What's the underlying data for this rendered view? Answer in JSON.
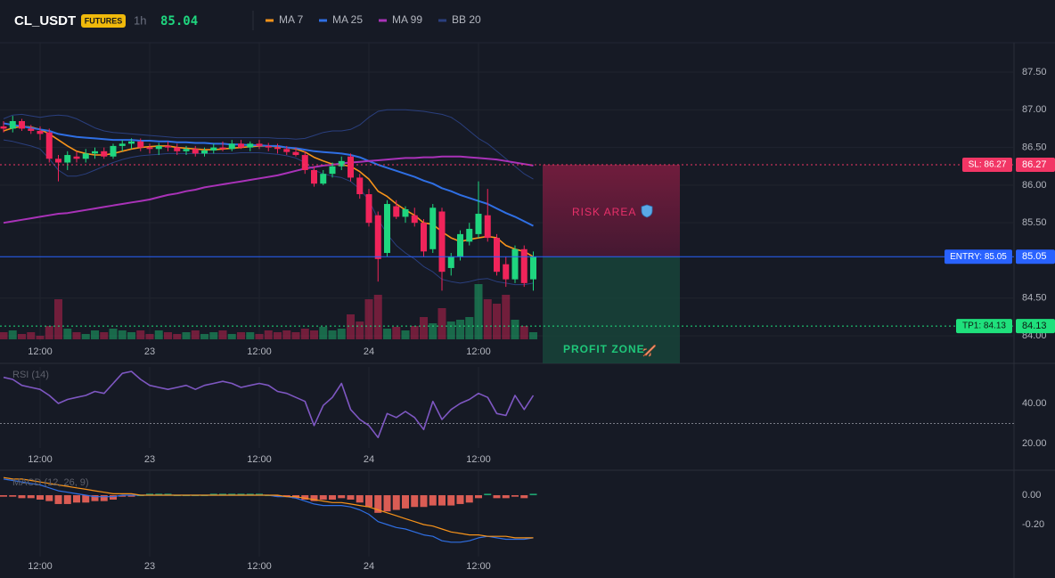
{
  "header": {
    "symbol": "CL_USDT",
    "badge": "FUTURES",
    "interval": "1h",
    "price": "85.04"
  },
  "chart_data": [
    {
      "type": "candlestick",
      "categories": [
        null,
        null,
        null,
        null,
        "12:00",
        null,
        null,
        null,
        null,
        null,
        null,
        null,
        null,
        null,
        null,
        null,
        "23",
        null,
        null,
        null,
        null,
        null,
        null,
        null,
        null,
        null,
        null,
        null,
        "12:00",
        null,
        null,
        null,
        null,
        null,
        null,
        null,
        null,
        null,
        null,
        null,
        "24",
        null,
        null,
        null,
        null,
        null,
        null,
        null,
        null,
        null,
        null,
        null,
        "12:00",
        null,
        null,
        null,
        null,
        null,
        null
      ],
      "open": [
        86.78,
        86.75,
        86.85,
        86.75,
        86.72,
        86.7,
        86.35,
        86.3,
        86.38,
        86.35,
        86.42,
        86.45,
        86.38,
        86.52,
        86.55,
        86.58,
        86.5,
        86.48,
        86.52,
        86.5,
        86.45,
        86.48,
        86.42,
        86.46,
        86.5,
        86.48,
        86.55,
        86.5,
        86.55,
        86.52,
        86.5,
        86.48,
        86.44,
        86.4,
        86.2,
        86.02,
        86.15,
        86.25,
        86.38,
        86.1,
        85.88,
        85.6,
        85.1,
        85.72,
        85.58,
        85.6,
        85.5,
        85.15,
        85.65,
        84.9,
        85.05,
        85.25,
        85.35,
        85.6,
        85.3,
        84.95,
        84.75,
        85.15,
        84.75
      ],
      "high": [
        86.85,
        86.92,
        86.88,
        86.8,
        86.78,
        86.75,
        86.4,
        86.45,
        86.45,
        86.48,
        86.5,
        86.5,
        86.55,
        86.6,
        86.62,
        86.62,
        86.55,
        86.56,
        86.58,
        86.55,
        86.52,
        86.52,
        86.5,
        86.55,
        86.58,
        86.6,
        86.6,
        86.58,
        86.6,
        86.56,
        86.55,
        86.52,
        86.5,
        86.45,
        86.25,
        86.2,
        86.3,
        86.38,
        86.42,
        86.15,
        85.95,
        85.65,
        85.8,
        85.8,
        85.72,
        85.7,
        85.55,
        85.75,
        85.7,
        85.1,
        85.4,
        85.5,
        86.05,
        85.95,
        85.35,
        85.05,
        85.2,
        85.2,
        85.12
      ],
      "low": [
        86.7,
        86.7,
        86.72,
        86.68,
        86.6,
        86.3,
        86.05,
        86.2,
        86.3,
        86.3,
        86.35,
        86.35,
        86.35,
        86.45,
        86.48,
        86.45,
        86.42,
        86.4,
        86.45,
        86.4,
        86.4,
        86.38,
        86.38,
        86.42,
        86.45,
        86.45,
        86.48,
        86.45,
        86.48,
        86.45,
        86.42,
        86.4,
        86.38,
        86.15,
        85.98,
        86.0,
        86.1,
        86.2,
        86.05,
        85.82,
        85.45,
        84.72,
        85.05,
        85.55,
        85.5,
        85.45,
        85.05,
        85.1,
        84.6,
        84.8,
        85.0,
        85.2,
        85.3,
        85.25,
        84.8,
        84.65,
        84.7,
        84.65,
        84.6
      ],
      "close": [
        86.75,
        86.85,
        86.75,
        86.72,
        86.68,
        86.35,
        86.3,
        86.4,
        86.35,
        86.42,
        86.45,
        86.38,
        86.52,
        86.55,
        86.58,
        86.5,
        86.48,
        86.52,
        86.5,
        86.45,
        86.48,
        86.42,
        86.46,
        86.5,
        86.48,
        86.55,
        86.5,
        86.55,
        86.52,
        86.5,
        86.48,
        86.44,
        86.4,
        86.2,
        86.02,
        86.15,
        86.25,
        86.32,
        86.1,
        85.88,
        85.5,
        85.02,
        85.75,
        85.58,
        85.68,
        85.5,
        85.12,
        85.7,
        84.85,
        85.05,
        85.35,
        85.42,
        85.62,
        85.3,
        84.85,
        84.75,
        85.15,
        84.7,
        85.05
      ],
      "volume": [
        8,
        10,
        6,
        8,
        4,
        15,
        45,
        12,
        8,
        6,
        10,
        8,
        12,
        10,
        8,
        10,
        6,
        10,
        8,
        6,
        8,
        10,
        6,
        8,
        10,
        6,
        8,
        8,
        6,
        10,
        8,
        10,
        8,
        12,
        10,
        14,
        10,
        12,
        28,
        20,
        45,
        50,
        12,
        14,
        10,
        15,
        25,
        18,
        35,
        20,
        22,
        25,
        62,
        45,
        40,
        50,
        22,
        15,
        8
      ],
      "up_color": "#1fd67f",
      "down_color": "#f0245a",
      "series": [
        {
          "name": "MA 7",
          "color": "#f7931a",
          "values": [
            86.72,
            86.76,
            86.78,
            86.77,
            86.74,
            86.68,
            86.6,
            86.52,
            86.45,
            86.42,
            86.4,
            86.4,
            86.42,
            86.45,
            86.48,
            86.5,
            86.51,
            86.52,
            86.52,
            86.5,
            86.49,
            86.48,
            86.47,
            86.47,
            86.48,
            86.49,
            86.5,
            86.51,
            86.52,
            86.52,
            86.51,
            86.5,
            86.48,
            86.44,
            86.37,
            86.32,
            86.28,
            86.27,
            86.25,
            86.18,
            86.08,
            85.92,
            85.85,
            85.75,
            85.67,
            85.6,
            85.5,
            85.48,
            85.38,
            85.3,
            85.25,
            85.28,
            85.3,
            85.32,
            85.3,
            85.2,
            85.15,
            85.12,
            85.05
          ]
        },
        {
          "name": "MA 25",
          "color": "#2f6fe4",
          "values": [
            86.82,
            86.8,
            86.78,
            86.76,
            86.74,
            86.72,
            86.68,
            86.66,
            86.64,
            86.63,
            86.62,
            86.61,
            86.6,
            86.6,
            86.6,
            86.59,
            86.59,
            86.58,
            86.58,
            86.57,
            86.57,
            86.56,
            86.56,
            86.55,
            86.55,
            86.54,
            86.54,
            86.53,
            86.53,
            86.52,
            86.52,
            86.5,
            86.49,
            86.47,
            86.45,
            86.44,
            86.43,
            86.42,
            86.4,
            86.37,
            86.32,
            86.27,
            86.23,
            86.19,
            86.15,
            86.11,
            86.06,
            86.02,
            85.96,
            85.92,
            85.87,
            85.83,
            85.79,
            85.75,
            85.69,
            85.63,
            85.58,
            85.52,
            85.46
          ]
        },
        {
          "name": "MA 99",
          "color": "#a932b8",
          "values": [
            85.5,
            85.52,
            85.54,
            85.56,
            85.58,
            85.6,
            85.62,
            85.63,
            85.65,
            85.67,
            85.69,
            85.71,
            85.73,
            85.75,
            85.77,
            85.79,
            85.81,
            85.84,
            85.87,
            85.89,
            85.92,
            85.94,
            85.97,
            85.99,
            86.01,
            86.03,
            86.05,
            86.07,
            86.09,
            86.11,
            86.13,
            86.16,
            86.19,
            86.22,
            86.24,
            86.26,
            86.27,
            86.29,
            86.3,
            86.31,
            86.32,
            86.33,
            86.34,
            86.35,
            86.36,
            86.36,
            86.37,
            86.37,
            86.38,
            86.38,
            86.38,
            86.37,
            86.36,
            86.35,
            86.34,
            86.32,
            86.3,
            86.28,
            86.26
          ]
        },
        {
          "name": "BB 20",
          "color": "#2a3f7e",
          "upper": [
            86.88,
            86.93,
            86.94,
            86.92,
            86.9,
            86.92,
            86.93,
            86.92,
            86.88,
            86.82,
            86.76,
            86.72,
            86.7,
            86.69,
            86.68,
            86.67,
            86.66,
            86.65,
            86.64,
            86.63,
            86.63,
            86.63,
            86.63,
            86.63,
            86.63,
            86.63,
            86.63,
            86.63,
            86.63,
            86.63,
            86.62,
            86.62,
            86.61,
            86.62,
            86.66,
            86.7,
            86.72,
            86.72,
            86.74,
            86.8,
            86.9,
            86.98,
            87.0,
            87.0,
            87.0,
            86.99,
            86.98,
            86.96,
            86.94,
            86.9,
            86.82,
            86.72,
            86.62,
            86.55,
            86.45,
            86.35,
            86.25,
            86.15,
            86.08
          ],
          "lower": [
            86.6,
            86.58,
            86.55,
            86.52,
            86.48,
            86.35,
            86.2,
            86.12,
            86.12,
            86.15,
            86.2,
            86.25,
            86.3,
            86.34,
            86.37,
            86.39,
            86.4,
            86.41,
            86.42,
            86.42,
            86.42,
            86.42,
            86.42,
            86.42,
            86.42,
            86.42,
            86.43,
            86.43,
            86.43,
            86.42,
            86.41,
            86.39,
            86.36,
            86.3,
            86.2,
            86.15,
            86.12,
            86.1,
            86.05,
            85.95,
            85.8,
            85.55,
            85.35,
            85.2,
            85.1,
            85.02,
            84.92,
            84.85,
            84.75,
            84.72,
            84.7,
            84.72,
            84.75,
            84.76,
            84.72,
            84.7,
            84.68,
            84.68,
            84.7
          ]
        }
      ],
      "ylim": [
        83.93,
        87.89
      ],
      "yticks": [
        {
          "value": 87.5,
          "label": "87.50"
        },
        {
          "value": 87,
          "label": "87.00"
        },
        {
          "value": 86.5,
          "label": "86.50"
        },
        {
          "value": 86,
          "label": "86.00"
        },
        {
          "value": 85.5,
          "label": "85.50"
        },
        {
          "value": 84.5,
          "label": "84.50"
        },
        {
          "value": 84,
          "label": "84.00"
        }
      ],
      "grid": true,
      "position": {
        "stop_loss": {
          "value": 86.27,
          "label": "SL: 86.27",
          "axis_label": "86.27",
          "color": "#f23665"
        },
        "entry": {
          "value": 85.05,
          "label": "ENTRY: 85.05",
          "axis_label": "85.05",
          "color": "#2962ff"
        },
        "take_profit": {
          "value": 84.13,
          "label": "TP1: 84.13",
          "axis_label": "84.13",
          "color": "#1fe07c"
        },
        "risk_label": "RISK AREA",
        "profit_label": "PROFIT ZONE"
      }
    },
    {
      "type": "line",
      "title": "RSI (14)",
      "categories": [
        null,
        null,
        null,
        null,
        "12:00",
        null,
        null,
        null,
        null,
        null,
        null,
        null,
        null,
        null,
        null,
        null,
        "23",
        null,
        null,
        null,
        null,
        null,
        null,
        null,
        null,
        null,
        null,
        null,
        "12:00",
        null,
        null,
        null,
        null,
        null,
        null,
        null,
        null,
        null,
        null,
        null,
        "24",
        null,
        null,
        null,
        null,
        null,
        null,
        null,
        null,
        null,
        null,
        null,
        "12:00",
        null,
        null,
        null,
        null,
        null,
        null
      ],
      "color": "#7e57c2",
      "values": [
        53,
        52,
        49,
        48,
        47,
        44,
        40,
        42,
        43,
        44,
        46,
        45,
        50,
        55,
        56,
        52,
        49,
        48,
        47,
        48,
        49,
        47,
        49,
        50,
        51,
        50,
        48,
        49,
        50,
        49,
        46,
        45,
        43,
        41,
        29,
        39,
        43,
        50,
        37,
        32,
        29,
        23,
        35,
        33,
        36,
        33,
        27,
        41,
        32,
        37,
        40,
        42,
        45,
        43,
        35,
        34,
        44,
        37,
        44
      ],
      "levels": [
        30
      ],
      "ylim": [
        17.8,
        58.2
      ],
      "yticks": [
        {
          "value": 40,
          "label": "40.00"
        },
        {
          "value": 20,
          "label": "20.00"
        }
      ]
    },
    {
      "type": "macd",
      "title": "MACD (12, 26, 9)",
      "categories": [
        null,
        null,
        null,
        null,
        "12:00",
        null,
        null,
        null,
        null,
        null,
        null,
        null,
        null,
        null,
        null,
        null,
        "23",
        null,
        null,
        null,
        null,
        null,
        null,
        null,
        null,
        null,
        null,
        null,
        "12:00",
        null,
        null,
        null,
        null,
        null,
        null,
        null,
        null,
        null,
        null,
        null,
        "24",
        null,
        null,
        null,
        null,
        null,
        null,
        null,
        null,
        null,
        null,
        null,
        "12:00",
        null,
        null,
        null,
        null,
        null,
        null
      ],
      "macd": [
        0.11,
        0.1,
        0.09,
        0.08,
        0.07,
        0.05,
        0.03,
        0.02,
        0.01,
        0,
        -0.01,
        -0.01,
        -0.01,
        0,
        0,
        0,
        0,
        0,
        0,
        0,
        0,
        0,
        0,
        0,
        0,
        0,
        0,
        0,
        0,
        0,
        -0.01,
        -0.01,
        -0.02,
        -0.04,
        -0.06,
        -0.07,
        -0.07,
        -0.07,
        -0.08,
        -0.1,
        -0.13,
        -0.18,
        -0.2,
        -0.22,
        -0.23,
        -0.25,
        -0.27,
        -0.28,
        -0.31,
        -0.32,
        -0.32,
        -0.31,
        -0.29,
        -0.28,
        -0.29,
        -0.3,
        -0.3,
        -0.3,
        -0.29
      ],
      "signal": [
        0.12,
        0.11,
        0.11,
        0.1,
        0.09,
        0.08,
        0.07,
        0.06,
        0.05,
        0.04,
        0.03,
        0.02,
        0.01,
        0.01,
        0.01,
        0,
        0,
        0,
        0,
        0,
        0,
        0,
        0,
        0,
        0,
        0,
        0,
        0,
        0,
        0,
        0,
        -0.01,
        -0.01,
        -0.02,
        -0.03,
        -0.04,
        -0.05,
        -0.05,
        -0.06,
        -0.07,
        -0.08,
        -0.1,
        -0.12,
        -0.14,
        -0.16,
        -0.18,
        -0.2,
        -0.21,
        -0.23,
        -0.25,
        -0.26,
        -0.27,
        -0.27,
        -0.28,
        -0.28,
        -0.28,
        -0.29,
        -0.29,
        -0.29
      ],
      "histogram": [
        -0.01,
        -0.01,
        -0.02,
        -0.02,
        -0.03,
        -0.04,
        -0.06,
        -0.06,
        -0.05,
        -0.05,
        -0.04,
        -0.04,
        -0.03,
        -0.01,
        -0.01,
        0,
        0.01,
        0.01,
        0.01,
        0,
        0,
        0,
        0,
        0.01,
        0.01,
        0.01,
        0.01,
        0.01,
        0.01,
        0,
        -0.01,
        -0.01,
        -0.02,
        -0.03,
        -0.04,
        -0.03,
        -0.03,
        -0.02,
        -0.03,
        -0.05,
        -0.08,
        -0.12,
        -0.11,
        -0.1,
        -0.09,
        -0.08,
        -0.08,
        -0.07,
        -0.07,
        -0.07,
        -0.06,
        -0.05,
        -0.02,
        0.01,
        -0.02,
        -0.02,
        -0.01,
        -0.02,
        0.01
      ],
      "macd_color": "#2f6fe4",
      "signal_color": "#f7931a",
      "up_color": "#1fb37a",
      "down_color": "#f0645a",
      "ylim": [
        -0.418,
        0.17
      ],
      "yticks": [
        {
          "value": 0,
          "label": "0.00"
        },
        {
          "value": -0.2,
          "label": "-0.20"
        }
      ]
    }
  ]
}
